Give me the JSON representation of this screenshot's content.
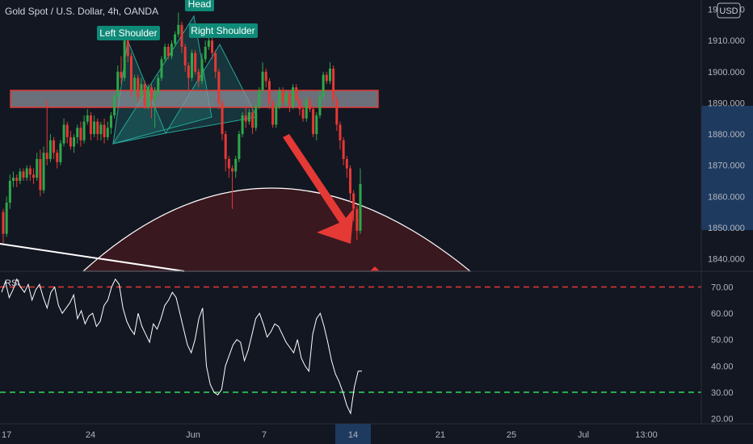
{
  "chart_data": {
    "type": "candlestick",
    "title": "Gold Spot / U.S. Dollar, 4h, OANDA",
    "currency": "USD",
    "price_axis": {
      "ylim": [
        1836,
        1923
      ],
      "ticks": [
        1840,
        1850,
        1860,
        1870,
        1880,
        1890,
        1900,
        1910,
        1920
      ],
      "tick_labels": [
        "1840.000",
        "1850.000",
        "1860.000",
        "1870.000",
        "1880.000",
        "1890.000",
        "1900.000",
        "1910.000",
        "1920.000"
      ]
    },
    "rsi_axis": {
      "label": "RSI",
      "ylim": [
        18,
        76
      ],
      "ticks": [
        20,
        30,
        40,
        50,
        60,
        70
      ],
      "tick_labels": [
        "20.00",
        "30.00",
        "40.00",
        "50.00",
        "60.00",
        "70.00"
      ],
      "overbought": 70,
      "oversold": 30
    },
    "time_axis": {
      "labels": [
        "17",
        "24",
        "Jun",
        "7",
        "14",
        "21",
        "25",
        "Jul",
        "13:00"
      ],
      "highlight": "14"
    },
    "candles": [
      [
        1855,
        1848,
        1856,
        1845
      ],
      [
        1848,
        1858,
        1860,
        1847
      ],
      [
        1858,
        1865,
        1867,
        1856
      ],
      [
        1865,
        1866,
        1868,
        1863
      ],
      [
        1866,
        1865,
        1867,
        1863
      ],
      [
        1865,
        1868,
        1869,
        1864
      ],
      [
        1868,
        1866,
        1869,
        1865
      ],
      [
        1866,
        1869,
        1870,
        1865
      ],
      [
        1869,
        1867,
        1870,
        1865
      ],
      [
        1867,
        1866,
        1869,
        1864
      ],
      [
        1866,
        1872,
        1874,
        1865
      ],
      [
        1872,
        1862,
        1875,
        1860
      ],
      [
        1862,
        1874,
        1876,
        1861
      ],
      [
        1874,
        1872,
        1891,
        1870
      ],
      [
        1872,
        1878,
        1880,
        1871
      ],
      [
        1878,
        1874,
        1879,
        1872
      ],
      [
        1874,
        1871,
        1875,
        1869
      ],
      [
        1871,
        1877,
        1878,
        1870
      ],
      [
        1877,
        1883,
        1885,
        1876
      ],
      [
        1883,
        1879,
        1884,
        1877
      ],
      [
        1879,
        1876,
        1881,
        1875
      ],
      [
        1876,
        1879,
        1880,
        1874
      ],
      [
        1879,
        1882,
        1883,
        1877
      ],
      [
        1882,
        1878,
        1884,
        1876
      ],
      [
        1878,
        1884,
        1886,
        1877
      ],
      [
        1884,
        1886,
        1888,
        1883
      ],
      [
        1886,
        1880,
        1887,
        1878
      ],
      [
        1880,
        1884,
        1886,
        1879
      ],
      [
        1884,
        1880,
        1885,
        1878
      ],
      [
        1880,
        1883,
        1884,
        1878
      ],
      [
        1883,
        1879,
        1885,
        1877
      ],
      [
        1879,
        1882,
        1884,
        1878
      ],
      [
        1882,
        1886,
        1887,
        1880
      ],
      [
        1886,
        1892,
        1893,
        1885
      ],
      [
        1892,
        1900,
        1902,
        1891
      ],
      [
        1900,
        1898,
        1905,
        1896
      ],
      [
        1898,
        1910,
        1912,
        1897
      ],
      [
        1910,
        1905,
        1911,
        1903
      ],
      [
        1905,
        1894,
        1906,
        1892
      ],
      [
        1894,
        1898,
        1899,
        1890
      ],
      [
        1898,
        1892,
        1899,
        1890
      ],
      [
        1892,
        1896,
        1898,
        1891
      ],
      [
        1896,
        1889,
        1897,
        1888
      ],
      [
        1889,
        1895,
        1896,
        1888
      ],
      [
        1895,
        1891,
        1896,
        1885
      ],
      [
        1891,
        1893,
        1895,
        1882
      ],
      [
        1893,
        1898,
        1899,
        1892
      ],
      [
        1898,
        1904,
        1905,
        1897
      ],
      [
        1904,
        1908,
        1909,
        1903
      ],
      [
        1908,
        1905,
        1909,
        1904
      ],
      [
        1905,
        1909,
        1910,
        1904
      ],
      [
        1909,
        1912,
        1913,
        1908
      ],
      [
        1912,
        1915,
        1919,
        1911
      ],
      [
        1915,
        1908,
        1916,
        1906
      ],
      [
        1908,
        1902,
        1909,
        1900
      ],
      [
        1902,
        1898,
        1903,
        1894
      ],
      [
        1898,
        1906,
        1907,
        1897
      ],
      [
        1906,
        1900,
        1907,
        1899
      ],
      [
        1900,
        1897,
        1901,
        1895
      ],
      [
        1897,
        1904,
        1906,
        1896
      ],
      [
        1904,
        1908,
        1910,
        1903
      ],
      [
        1908,
        1910,
        1911,
        1907
      ],
      [
        1910,
        1906,
        1911,
        1904
      ],
      [
        1906,
        1900,
        1907,
        1898
      ],
      [
        1900,
        1890,
        1901,
        1888
      ],
      [
        1890,
        1880,
        1891,
        1878
      ],
      [
        1880,
        1872,
        1881,
        1868
      ],
      [
        1872,
        1869,
        1873,
        1866
      ],
      [
        1869,
        1868,
        1870,
        1856
      ],
      [
        1868,
        1872,
        1873,
        1866
      ],
      [
        1872,
        1880,
        1881,
        1871
      ],
      [
        1880,
        1886,
        1887,
        1879
      ],
      [
        1886,
        1884,
        1889,
        1882
      ],
      [
        1884,
        1887,
        1888,
        1883
      ],
      [
        1887,
        1882,
        1888,
        1880
      ],
      [
        1882,
        1889,
        1890,
        1881
      ],
      [
        1889,
        1894,
        1895,
        1888
      ],
      [
        1894,
        1900,
        1903,
        1893
      ],
      [
        1900,
        1897,
        1901,
        1895
      ],
      [
        1897,
        1890,
        1898,
        1888
      ],
      [
        1890,
        1883,
        1891,
        1882
      ],
      [
        1883,
        1889,
        1890,
        1882
      ],
      [
        1889,
        1894,
        1895,
        1888
      ],
      [
        1894,
        1890,
        1895,
        1889
      ],
      [
        1890,
        1893,
        1894,
        1889
      ],
      [
        1893,
        1889,
        1894,
        1887
      ],
      [
        1889,
        1895,
        1896,
        1888
      ],
      [
        1895,
        1891,
        1896,
        1890
      ],
      [
        1891,
        1888,
        1892,
        1886
      ],
      [
        1888,
        1885,
        1889,
        1884
      ],
      [
        1885,
        1891,
        1892,
        1884
      ],
      [
        1891,
        1888,
        1892,
        1887
      ],
      [
        1888,
        1880,
        1889,
        1879
      ],
      [
        1880,
        1886,
        1887,
        1878
      ],
      [
        1886,
        1892,
        1894,
        1885
      ],
      [
        1892,
        1899,
        1900,
        1891
      ],
      [
        1899,
        1897,
        1900,
        1896
      ],
      [
        1897,
        1901,
        1903,
        1896
      ],
      [
        1901,
        1891,
        1902,
        1889
      ],
      [
        1891,
        1883,
        1892,
        1881
      ],
      [
        1883,
        1878,
        1884,
        1875
      ],
      [
        1878,
        1872,
        1879,
        1870
      ],
      [
        1872,
        1869,
        1873,
        1866
      ],
      [
        1869,
        1861,
        1870,
        1858
      ],
      [
        1861,
        1856,
        1862,
        1852
      ],
      [
        1856,
        1849,
        1857,
        1846
      ],
      [
        1849,
        1864,
        1869,
        1848
      ]
    ],
    "rsi": [
      68,
      72,
      66,
      69,
      73,
      70,
      68,
      71,
      65,
      69,
      71,
      66,
      62,
      68,
      70,
      63,
      60,
      62,
      64,
      67,
      58,
      61,
      56,
      59,
      60,
      55,
      57,
      63,
      65,
      70,
      73,
      71,
      62,
      57,
      54,
      52,
      60,
      55,
      52,
      49,
      56,
      54,
      58,
      63,
      65,
      68,
      66,
      60,
      54,
      48,
      45,
      50,
      58,
      62,
      40,
      33,
      30,
      29,
      31,
      40,
      44,
      48,
      50,
      49,
      42,
      46,
      52,
      58,
      60,
      56,
      51,
      53,
      56,
      55,
      52,
      49,
      47,
      45,
      50,
      43,
      40,
      38,
      52,
      58,
      60,
      55,
      49,
      42,
      37,
      34,
      30,
      25,
      22,
      32,
      38,
      38
    ]
  },
  "annotations": {
    "left_shoulder": "Left Shoulder",
    "head": "Head",
    "right_shoulder": "Right Shoulder"
  },
  "colors": {
    "background": "#131722",
    "up": "#2ea84a",
    "down": "#e53935",
    "rsi_line": "#ffffff",
    "overbought_line": "#e53935",
    "oversold_line": "#2ee05c",
    "label_bg": "#0f8a78",
    "zone_fill": "#8a8f9a",
    "zone_stroke": "#e53935",
    "arrow": "#e53935",
    "dome_fill": "#3a1820",
    "axis_highlight": "#1e3a5f"
  }
}
